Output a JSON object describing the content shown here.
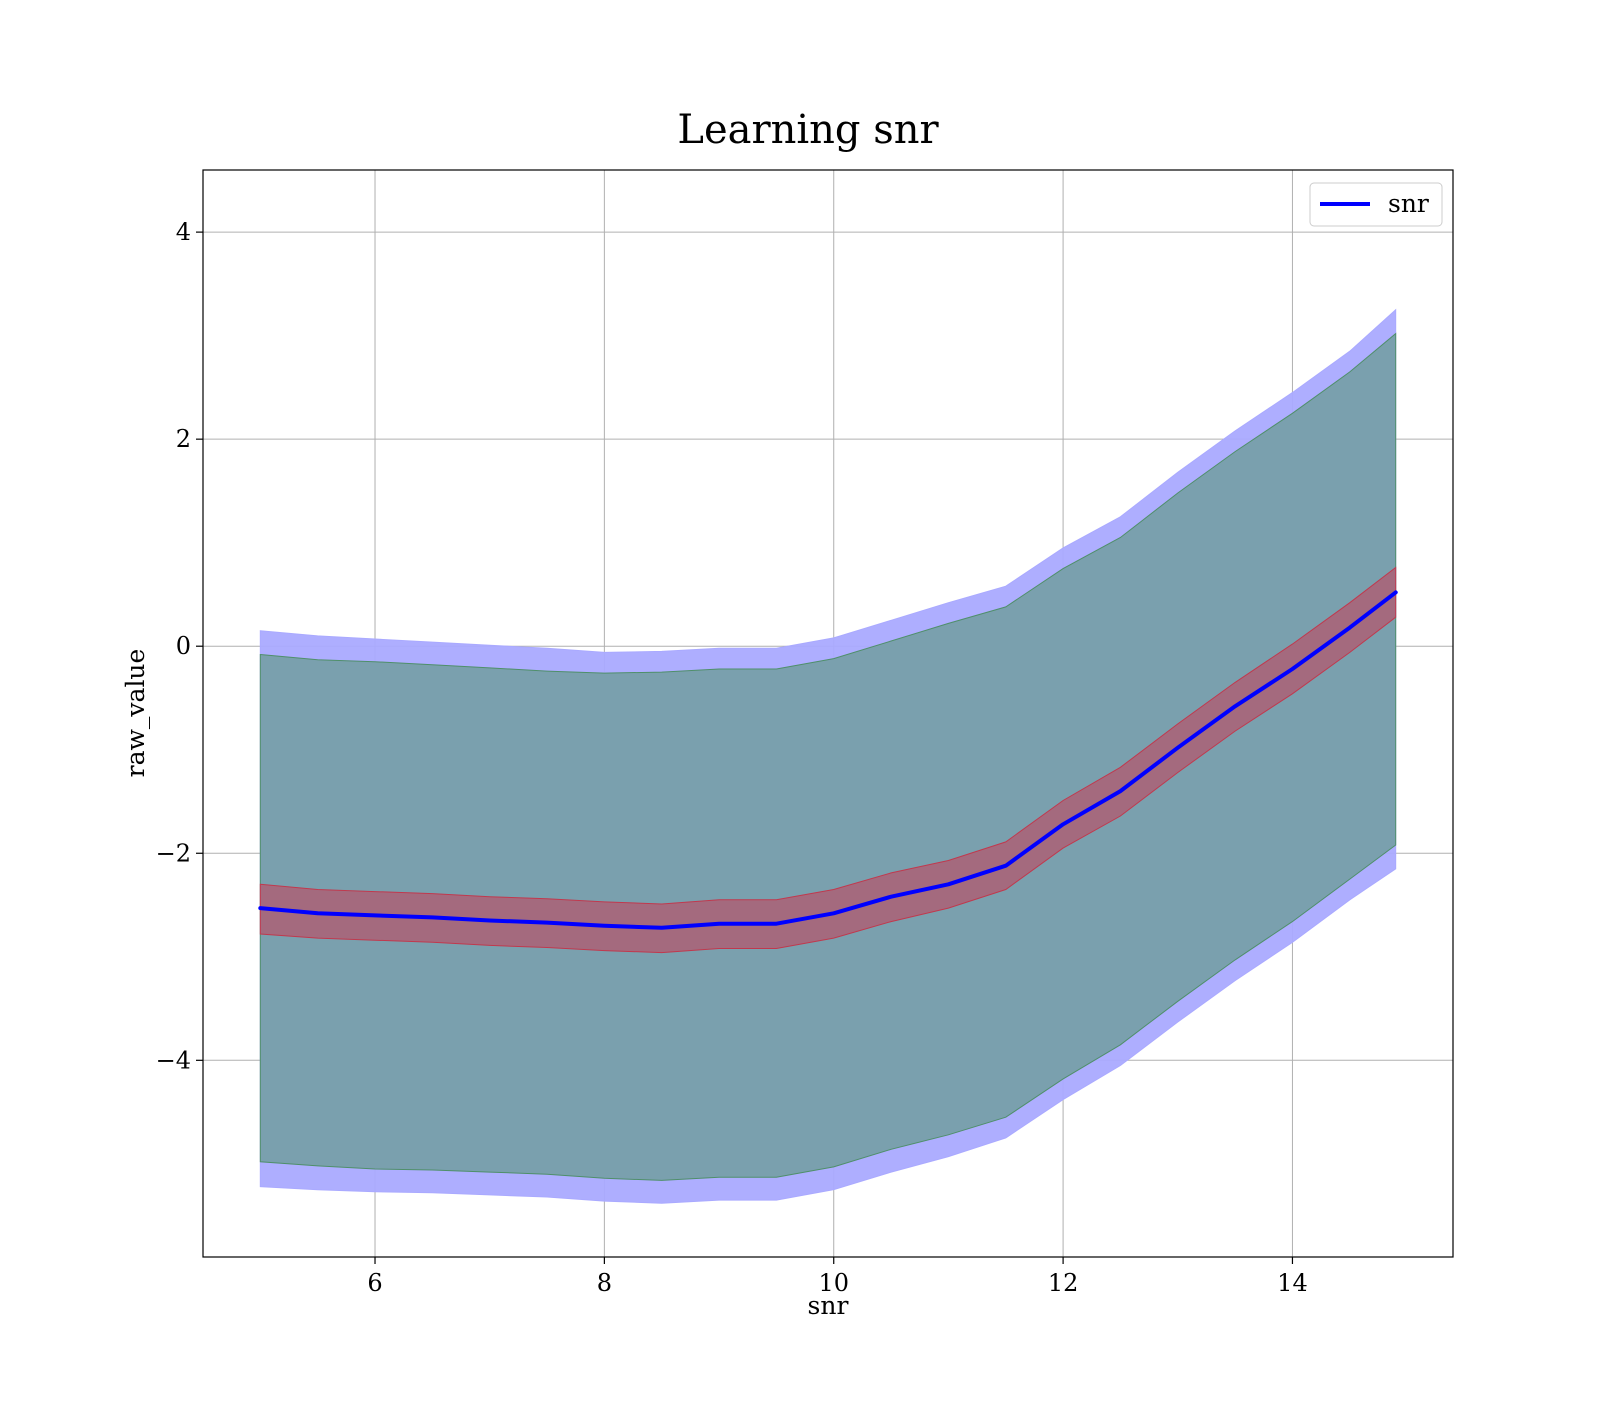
{
  "chart_data": {
    "type": "line",
    "title": "Learning snr",
    "xlabel": "snr",
    "ylabel": "raw_value",
    "xlim": [
      4.5,
      15.4
    ],
    "ylim": [
      -5.9,
      4.6
    ],
    "xticks": [
      6,
      8,
      10,
      12,
      14
    ],
    "xtick_labels": [
      "6",
      "8",
      "10",
      "12",
      "14"
    ],
    "yticks": [
      -4,
      -2,
      0,
      2,
      4
    ],
    "ytick_labels": [
      "−4",
      "−2",
      "0",
      "2",
      "4"
    ],
    "grid": true,
    "legend": {
      "placement": "top-right",
      "entries": [
        "snr"
      ]
    },
    "colors": {
      "line": "#0000ff",
      "band_outer": "#aaaaff",
      "band_middle": "#7aa0ae",
      "band_inner": "#a46a7e",
      "band_inner_edge": "#c0394e",
      "band_middle_edge": "#4f8f6a",
      "grid": "#b0b0b0"
    },
    "x": [
      5.0,
      5.5,
      6.0,
      6.5,
      7.0,
      7.5,
      8.0,
      8.5,
      9.0,
      9.5,
      10.0,
      10.5,
      11.0,
      11.5,
      12.0,
      12.5,
      13.0,
      13.5,
      14.0,
      14.5,
      14.9
    ],
    "series": [
      {
        "name": "snr",
        "values": [
          -2.53,
          -2.58,
          -2.6,
          -2.62,
          -2.65,
          -2.67,
          -2.7,
          -2.72,
          -2.68,
          -2.68,
          -2.58,
          -2.42,
          -2.3,
          -2.12,
          -1.72,
          -1.4,
          -0.98,
          -0.58,
          -0.22,
          0.18,
          0.52
        ]
      }
    ],
    "bands": [
      {
        "role": "outer",
        "lower": [
          -5.22,
          -5.25,
          -5.27,
          -5.28,
          -5.3,
          -5.32,
          -5.36,
          -5.38,
          -5.35,
          -5.35,
          -5.25,
          -5.08,
          -4.93,
          -4.75,
          -4.38,
          -4.05,
          -3.63,
          -3.23,
          -2.86,
          -2.45,
          -2.15
        ],
        "upper": [
          0.15,
          0.1,
          0.07,
          0.04,
          0.01,
          -0.02,
          -0.06,
          -0.05,
          -0.02,
          -0.02,
          0.08,
          0.25,
          0.42,
          0.58,
          0.95,
          1.25,
          1.68,
          2.08,
          2.45,
          2.85,
          3.25
        ]
      },
      {
        "role": "middle",
        "lower": [
          -4.98,
          -5.02,
          -5.05,
          -5.06,
          -5.08,
          -5.1,
          -5.14,
          -5.16,
          -5.13,
          -5.13,
          -5.03,
          -4.86,
          -4.72,
          -4.55,
          -4.18,
          -3.85,
          -3.43,
          -3.03,
          -2.66,
          -2.25,
          -1.92
        ],
        "upper": [
          -0.08,
          -0.13,
          -0.15,
          -0.18,
          -0.21,
          -0.24,
          -0.26,
          -0.25,
          -0.22,
          -0.22,
          -0.12,
          0.05,
          0.22,
          0.38,
          0.75,
          1.05,
          1.48,
          1.88,
          2.25,
          2.65,
          3.02
        ]
      },
      {
        "role": "inner",
        "lower": [
          -2.78,
          -2.82,
          -2.84,
          -2.86,
          -2.89,
          -2.91,
          -2.94,
          -2.96,
          -2.92,
          -2.92,
          -2.82,
          -2.66,
          -2.53,
          -2.35,
          -1.95,
          -1.64,
          -1.22,
          -0.82,
          -0.46,
          -0.06,
          0.28
        ],
        "upper": [
          -2.3,
          -2.35,
          -2.37,
          -2.39,
          -2.42,
          -2.44,
          -2.47,
          -2.49,
          -2.45,
          -2.45,
          -2.35,
          -2.19,
          -2.07,
          -1.89,
          -1.49,
          -1.17,
          -0.75,
          -0.35,
          0.02,
          0.42,
          0.76
        ]
      }
    ]
  }
}
